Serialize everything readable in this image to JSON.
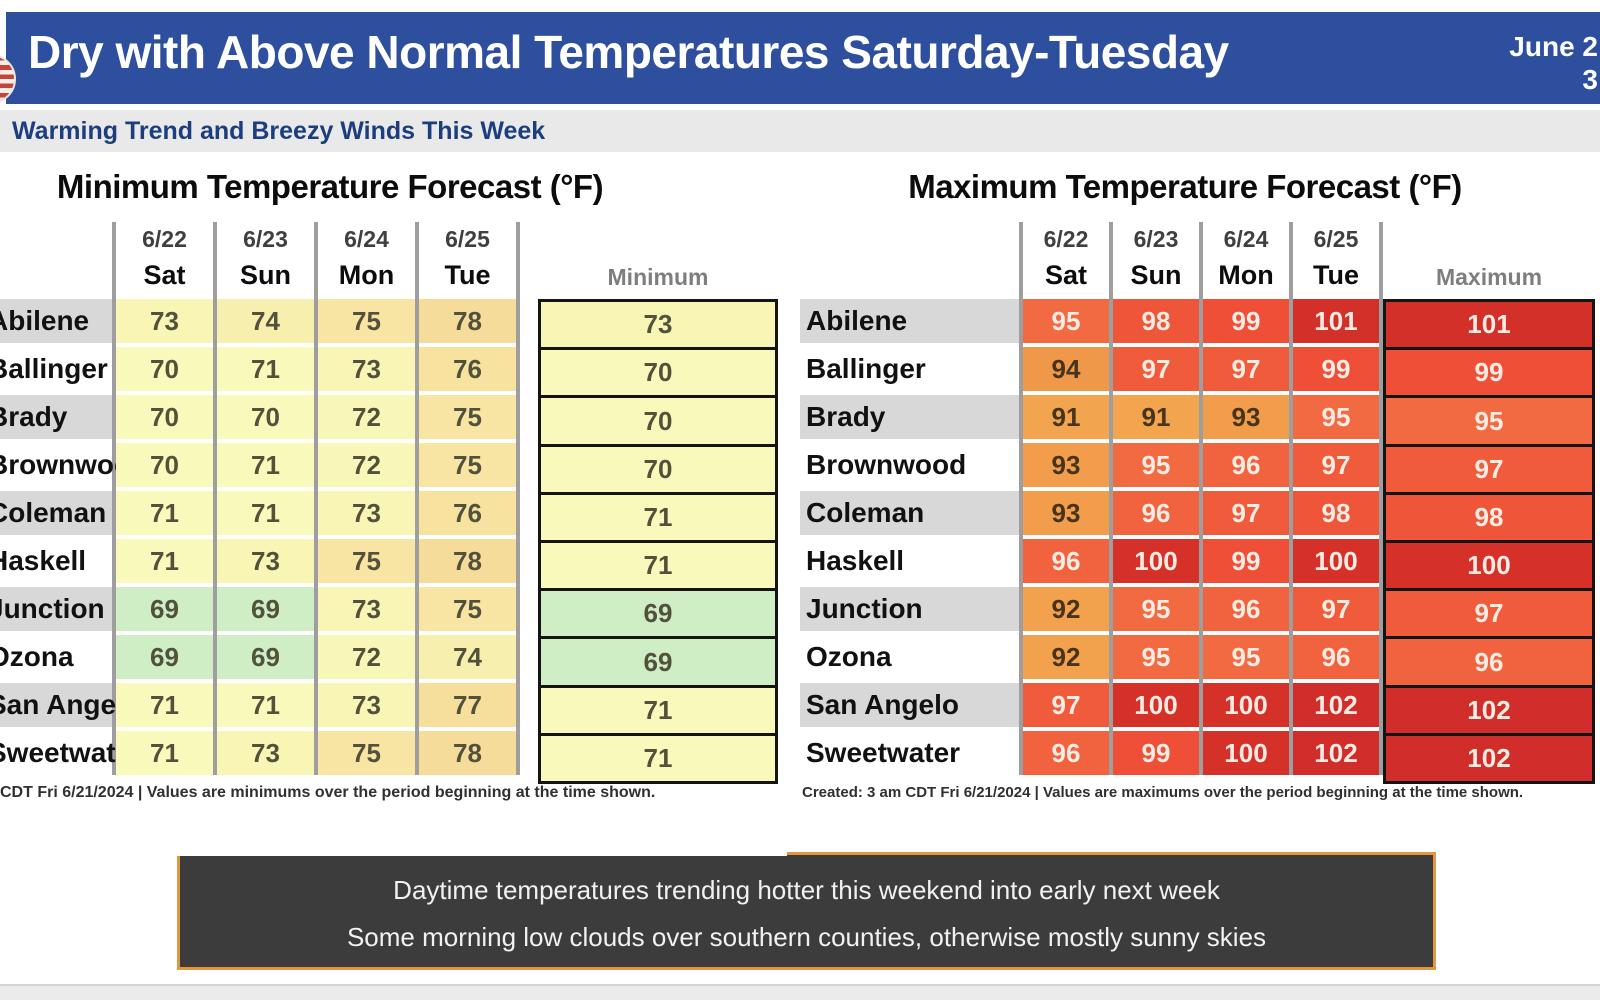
{
  "header": {
    "title": "Dry with Above Normal Temperatures Saturday-Tuesday",
    "date_line1": "June 2",
    "date_line2": "3"
  },
  "subheader": {
    "text": "Warming Trend and Breezy Winds This Week"
  },
  "chart_data": [
    {
      "type": "table",
      "title": "Minimum Temperature Forecast (°F)",
      "date_headers": [
        "6/22",
        "6/23",
        "6/24",
        "6/25"
      ],
      "day_headers": [
        "Sat",
        "Sun",
        "Mon",
        "Tue"
      ],
      "summary_label": "Minimum",
      "footer": "CDT Fri 6/21/2024  |  Values are minimums over the period beginning at the time shown.",
      "rows": [
        [
          "Abilene",
          73,
          74,
          75,
          78,
          73
        ],
        [
          "Ballinger",
          70,
          71,
          73,
          76,
          70
        ],
        [
          "Brady",
          70,
          70,
          72,
          75,
          70
        ],
        [
          "Brownwood",
          70,
          71,
          72,
          75,
          70
        ],
        [
          "Coleman",
          71,
          71,
          73,
          76,
          71
        ],
        [
          "Haskell",
          71,
          73,
          75,
          78,
          71
        ],
        [
          "Junction",
          69,
          69,
          73,
          75,
          69
        ],
        [
          "Ozona",
          69,
          69,
          72,
          74,
          69
        ],
        [
          "San Angelo",
          71,
          71,
          73,
          77,
          71
        ],
        [
          "Sweetwater",
          71,
          73,
          75,
          78,
          71
        ]
      ]
    },
    {
      "type": "table",
      "title": "Maximum Temperature Forecast (°F)",
      "date_headers": [
        "6/22",
        "6/23",
        "6/24",
        "6/25"
      ],
      "day_headers": [
        "Sat",
        "Sun",
        "Mon",
        "Tue"
      ],
      "summary_label": "Maximum",
      "footer": "Created: 3 am CDT Fri 6/21/2024  |  Values are maximums over the period beginning at the time shown.",
      "rows": [
        [
          "Abilene",
          95,
          98,
          99,
          101,
          101
        ],
        [
          "Ballinger",
          94,
          97,
          97,
          99,
          99
        ],
        [
          "Brady",
          91,
          91,
          93,
          95,
          95
        ],
        [
          "Brownwood",
          93,
          95,
          96,
          97,
          97
        ],
        [
          "Coleman",
          93,
          96,
          97,
          98,
          98
        ],
        [
          "Haskell",
          96,
          100,
          99,
          100,
          100
        ],
        [
          "Junction",
          92,
          95,
          96,
          97,
          97
        ],
        [
          "Ozona",
          92,
          95,
          95,
          96,
          96
        ],
        [
          "San Angelo",
          97,
          100,
          100,
          102,
          102
        ],
        [
          "Sweetwater",
          96,
          99,
          100,
          102,
          102
        ]
      ]
    }
  ],
  "callout": {
    "line1": "Daytime temperatures trending hotter this weekend into early next week",
    "line2": "Some morning low clouds over southern counties, otherwise mostly sunny skies"
  },
  "colors": {
    "header_bg": "#2d4f9d",
    "subheader_bg": "#e9e9e9",
    "subheader_text": "#1c3e7e",
    "row_stripe": "#d8d8d8",
    "grid_line": "#9e9e9e",
    "summary_border": "#141414",
    "footer_text": "#303030",
    "callout_bg": "#3d3c3c",
    "callout_border": "#e39640",
    "callout_text": "#f1f1f1",
    "min_text": "#51513c",
    "max_text_dark": "#46341f",
    "max_text_light": "#fdece4",
    "min_scale": {
      "69": "#cfeec6",
      "70": "#f9f9bb",
      "71": "#f9f9bb",
      "72": "#f8f7b8",
      "73": "#f8f5b5",
      "74": "#f7efae",
      "75": "#f8e5a3",
      "76": "#f7e2a0",
      "77": "#f6df9d",
      "78": "#f5dc9a"
    },
    "max_scale": {
      "91": "#f2a54e",
      "92": "#f2a14c",
      "93": "#f19d4b",
      "94": "#f0984a",
      "95": "#f26a42",
      "96": "#f1633e",
      "97": "#f05c3b",
      "98": "#ef5539",
      "99": "#ee4f36",
      "100": "#d53129",
      "101": "#d3302a",
      "102": "#d12d2b"
    }
  }
}
